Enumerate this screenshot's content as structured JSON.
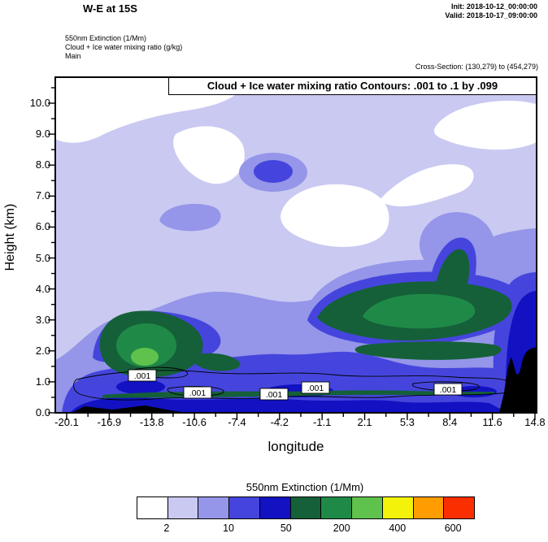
{
  "header": {
    "title": "W-E at 15S",
    "init": "Init: 2018-10-12_00:00:00",
    "valid": "Valid: 2018-10-17_09:00:00",
    "field1": "550nm Extinction  (1/Mm)",
    "field2": "Cloud + Ice water mixing ratio  (g/kg)",
    "field3": "Main",
    "cross_section": "Cross-Section: (130,279) to (454,279)"
  },
  "plot": {
    "contour_note": "Cloud + Ice water mixing ratio Contours: .001 to .1 by .099",
    "xlabel": "longitude",
    "ylabel": "Height (km)",
    "y_tick_labels": [
      "0.0",
      "1.0",
      "2.0",
      "3.0",
      "4.0",
      "5.0",
      "6.0",
      "7.0",
      "8.0",
      "9.0",
      "10.0"
    ],
    "x_tick_labels": [
      "-20.1",
      "-16.9",
      "-13.8",
      "-10.6",
      "-7.4",
      "-4.2",
      "-1.1",
      "2.1",
      "5.3",
      "8.4",
      "11.6",
      "14.8"
    ],
    "contour_labels": [
      ".001",
      ".001",
      ".001",
      ".001",
      ".001"
    ],
    "terrain_color": "#000000"
  },
  "colorbar": {
    "title": "550nm Extinction  (1/Mm)",
    "tick_labels": [
      "2",
      "10",
      "50",
      "200",
      "400",
      "600"
    ],
    "colors": [
      "#ffffff",
      "#c9c9f2",
      "#9595e9",
      "#4545dd",
      "#1212c3",
      "#156038",
      "#1f8a47",
      "#5fc24d",
      "#f2f20a",
      "#ff9c00",
      "#fb2e00"
    ]
  },
  "chart_data": {
    "type": "heatmap",
    "subtype": "filled_contour_vertical_cross_section",
    "title": "Cloud + Ice water mixing ratio Contours: .001 to .1 by .099",
    "section_title": "W-E at 15S",
    "xlabel": "longitude",
    "ylabel": "Height (km)",
    "x_ticks": [
      -20.1,
      -16.9,
      -13.8,
      -10.6,
      -7.4,
      -4.2,
      -1.1,
      2.1,
      5.3,
      8.4,
      11.6,
      14.8
    ],
    "y_ticks": [
      0,
      1,
      2,
      3,
      4,
      5,
      6,
      7,
      8,
      9,
      10
    ],
    "xlim": [
      -21,
      15
    ],
    "ylim": [
      0,
      10.8
    ],
    "grid": false,
    "fill_field": "550nm Extinction (1/Mm)",
    "fill_labeled_levels": [
      2,
      10,
      50,
      200,
      400,
      600
    ],
    "fill_colors": [
      "#ffffff",
      "#c9c9f2",
      "#9595e9",
      "#4545dd",
      "#1212c3",
      "#156038",
      "#1f8a47",
      "#5fc24d",
      "#f2f20a",
      "#ff9c00",
      "#fb2e00"
    ],
    "overlay_contour_field": "Cloud + Ice water mixing ratio (g/kg)",
    "overlay_contour_levels": [
      0.001,
      0.1
    ],
    "features": [
      {
        "name": "clear-air",
        "extinction_1_per_Mm": "<2",
        "where": "above ~8.5 km left of -10 lon; 5.5-7.5 km mid-section; above ~9 km near 8-14 lon"
      },
      {
        "name": "background-haze",
        "extinction_1_per_Mm": "2-10",
        "where": "most of the free troposphere"
      },
      {
        "name": "boundary-layer-aerosol",
        "extinction_1_per_Mm": "50-600",
        "where": "below ~1.5 km along the whole section"
      },
      {
        "name": "elevated-plume-right",
        "extinction_1_per_Mm": "400-600",
        "where": "2-5 km between ~-3 and 11 lon, brightest core near 2-6 lon at 3-4 km"
      },
      {
        "name": "elevated-plume-left",
        "extinction_1_per_Mm": "400-600",
        "where": "1-2.5 km between ~-17 and -11 lon"
      },
      {
        "name": "upper-level-patch",
        "extinction_1_per_Mm": "10-200",
        "where": "~8 km near -6 lon"
      },
      {
        "name": "terrain",
        "where": "black fill below ~2 km from ~11.6 to 14.8 lon"
      },
      {
        "name": "cloud-water-contours",
        "value_g_per_kg": 0.001,
        "where": "shallow layer near 0.5-1.2 km across the section"
      }
    ]
  }
}
